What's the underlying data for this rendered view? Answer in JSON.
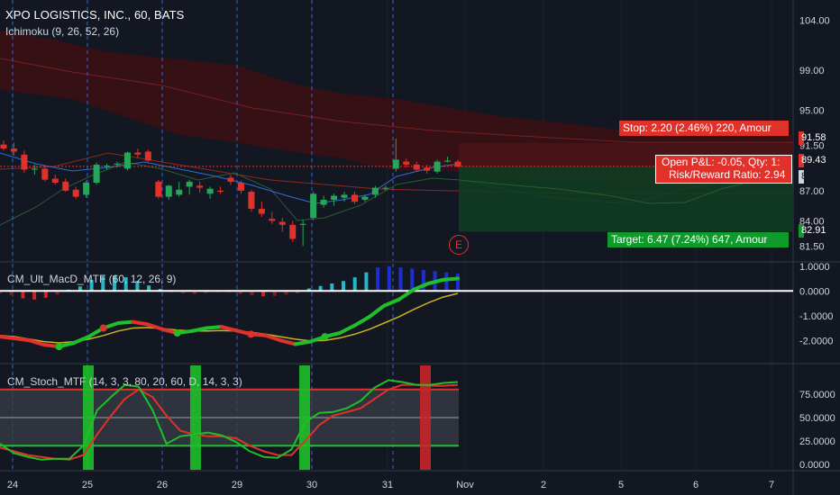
{
  "header": {
    "title": "XPO LOGISTICS, INC., 60, BATS",
    "indicator": "Ichimoku (9, 26, 52, 26)"
  },
  "panes": {
    "macd_title": "CM_Ult_MacD_MTF (60, 12, 26, 9)",
    "stoch_title": "CM_Stoch_MTF (14, 3, 3, 80, 20, 60, D, 14, 3, 3)"
  },
  "position": {
    "stop_label": "Stop: 2.20 (2.46%) 220, Amour",
    "target_label": "Target: 6.47 (7.24%) 647, Amour",
    "pnl_label": "Open P&L: -0.05, Qty: 1:",
    "rr_label": "Risk/Reward Ratio: 2.94",
    "earnings_marker": "E"
  },
  "price_tags": {
    "stop": "91.58",
    "current": "89.43",
    "entry": "89.38",
    "target": "82.91"
  },
  "colors": {
    "background": "#131722",
    "up": "#26a65b",
    "down": "#e0312b",
    "grid": "#1e2230",
    "target_zone": "#0f3d22",
    "stop_zone": "#4a1418",
    "cloud": "#3a0f14"
  },
  "chart_data": [
    {
      "type": "candlestick",
      "title": "XPO LOGISTICS, INC., 60, BATS",
      "x_ticks": [
        "24",
        "25",
        "26",
        "29",
        "30",
        "31",
        "Nov",
        "2",
        "5",
        "6",
        "7"
      ],
      "y_ticks": [
        "104.00",
        "99.00",
        "95.00",
        "91.50",
        "87.00",
        "84.00",
        "81.50"
      ],
      "ylim": [
        80.0,
        106.0
      ],
      "candles": [
        {
          "o": 91.6,
          "h": 92.0,
          "l": 91.0,
          "c": 91.2
        },
        {
          "o": 91.2,
          "h": 91.8,
          "l": 90.5,
          "c": 90.9
        },
        {
          "o": 90.6,
          "h": 91.0,
          "l": 88.8,
          "c": 89.1
        },
        {
          "o": 89.1,
          "h": 89.6,
          "l": 88.6,
          "c": 89.2
        },
        {
          "o": 89.2,
          "h": 89.5,
          "l": 87.9,
          "c": 88.1
        },
        {
          "o": 88.2,
          "h": 88.6,
          "l": 87.6,
          "c": 87.8
        },
        {
          "o": 87.9,
          "h": 88.2,
          "l": 86.9,
          "c": 87.0
        },
        {
          "o": 87.1,
          "h": 87.4,
          "l": 86.2,
          "c": 86.4
        },
        {
          "o": 86.6,
          "h": 88.0,
          "l": 86.3,
          "c": 87.8
        },
        {
          "o": 87.8,
          "h": 89.8,
          "l": 87.6,
          "c": 89.6
        },
        {
          "o": 89.4,
          "h": 89.7,
          "l": 89.1,
          "c": 89.5
        },
        {
          "o": 89.6,
          "h": 89.9,
          "l": 89.3,
          "c": 89.7
        },
        {
          "o": 89.2,
          "h": 90.9,
          "l": 89.0,
          "c": 90.8
        },
        {
          "o": 90.8,
          "h": 91.2,
          "l": 90.3,
          "c": 90.6
        },
        {
          "o": 90.9,
          "h": 91.1,
          "l": 89.9,
          "c": 90.0
        },
        {
          "o": 87.9,
          "h": 88.1,
          "l": 86.2,
          "c": 86.4
        },
        {
          "o": 86.4,
          "h": 87.6,
          "l": 86.1,
          "c": 87.5
        },
        {
          "o": 86.6,
          "h": 87.9,
          "l": 86.4,
          "c": 87.1
        },
        {
          "o": 87.4,
          "h": 88.1,
          "l": 86.6,
          "c": 87.9
        },
        {
          "o": 87.5,
          "h": 87.9,
          "l": 86.8,
          "c": 87.3
        },
        {
          "o": 86.7,
          "h": 87.4,
          "l": 86.2,
          "c": 87.2
        },
        {
          "o": 87.0,
          "h": 87.4,
          "l": 86.7,
          "c": 86.9
        },
        {
          "o": 88.3,
          "h": 88.6,
          "l": 87.6,
          "c": 87.9
        },
        {
          "o": 87.8,
          "h": 88.0,
          "l": 86.7,
          "c": 87.0
        },
        {
          "o": 86.9,
          "h": 87.1,
          "l": 84.9,
          "c": 85.2
        },
        {
          "o": 85.2,
          "h": 85.9,
          "l": 84.4,
          "c": 84.7
        },
        {
          "o": 84.2,
          "h": 84.9,
          "l": 83.7,
          "c": 84.0
        },
        {
          "o": 83.9,
          "h": 84.3,
          "l": 82.9,
          "c": 83.6
        },
        {
          "o": 83.6,
          "h": 84.0,
          "l": 81.9,
          "c": 82.2
        },
        {
          "o": 83.6,
          "h": 84.1,
          "l": 81.5,
          "c": 83.7
        },
        {
          "o": 84.3,
          "h": 86.9,
          "l": 84.1,
          "c": 86.7
        },
        {
          "o": 85.6,
          "h": 86.5,
          "l": 85.3,
          "c": 86.1
        },
        {
          "o": 86.1,
          "h": 86.7,
          "l": 85.5,
          "c": 86.5
        },
        {
          "o": 86.3,
          "h": 86.9,
          "l": 85.9,
          "c": 86.6
        },
        {
          "o": 86.6,
          "h": 86.9,
          "l": 85.7,
          "c": 85.9
        },
        {
          "o": 86.1,
          "h": 86.6,
          "l": 85.9,
          "c": 86.4
        },
        {
          "o": 86.6,
          "h": 87.5,
          "l": 86.3,
          "c": 87.3
        },
        {
          "o": 87.2,
          "h": 87.5,
          "l": 87.0,
          "c": 87.3
        },
        {
          "o": 89.2,
          "h": 92.2,
          "l": 88.9,
          "c": 90.1
        },
        {
          "o": 89.9,
          "h": 90.2,
          "l": 89.3,
          "c": 89.6
        },
        {
          "o": 89.6,
          "h": 89.9,
          "l": 88.9,
          "c": 89.1
        },
        {
          "o": 89.3,
          "h": 89.6,
          "l": 88.7,
          "c": 89.0
        },
        {
          "o": 88.9,
          "h": 90.1,
          "l": 88.7,
          "c": 89.9
        },
        {
          "o": 89.9,
          "h": 90.4,
          "l": 89.8,
          "c": 90.0
        },
        {
          "o": 89.9,
          "h": 90.1,
          "l": 89.3,
          "c": 89.4
        }
      ],
      "position": {
        "entry": 89.38,
        "stop": 91.58,
        "target": 82.91,
        "current": 89.43
      }
    },
    {
      "type": "bar+line",
      "title": "CM_Ult_MacD_MTF (60, 12, 26, 9)",
      "y_ticks": [
        "1.0000",
        "0.0000",
        "-1.0000",
        "-2.0000"
      ],
      "ylim": [
        -2.9,
        1.1
      ],
      "histogram": [
        -0.1,
        -0.18,
        -0.3,
        -0.35,
        -0.28,
        -0.15,
        0.05,
        0.18,
        0.45,
        0.6,
        0.62,
        0.55,
        0.4,
        0.22,
        0.08,
        -0.05,
        -0.1,
        -0.12,
        -0.08,
        -0.05,
        -0.05,
        -0.12,
        -0.18,
        -0.22,
        -0.2,
        -0.15,
        -0.1,
        0.1,
        0.2,
        0.3,
        0.4,
        0.55,
        0.75,
        0.95,
        1.0,
        0.95,
        0.9,
        0.85,
        0.8,
        0.75,
        0.7
      ],
      "macd_line": [
        -1.85,
        -1.92,
        -2.0,
        -2.18,
        -2.25,
        -2.1,
        -1.85,
        -1.5,
        -1.3,
        -1.25,
        -1.35,
        -1.55,
        -1.7,
        -1.62,
        -1.5,
        -1.45,
        -1.6,
        -1.75,
        -1.8,
        -2.0,
        -2.15,
        -2.05,
        -1.85,
        -1.7,
        -1.4,
        -1.05,
        -0.6,
        -0.35,
        0.05,
        0.3,
        0.45,
        0.5
      ],
      "signal_line": [
        -1.8,
        -1.85,
        -1.95,
        -2.05,
        -2.1,
        -2.05,
        -1.95,
        -1.8,
        -1.62,
        -1.5,
        -1.48,
        -1.52,
        -1.58,
        -1.62,
        -1.62,
        -1.6,
        -1.62,
        -1.68,
        -1.75,
        -1.85,
        -1.95,
        -2.02,
        -2.0,
        -1.9,
        -1.75,
        -1.55,
        -1.3,
        -1.05,
        -0.75,
        -0.48,
        -0.25,
        -0.1
      ]
    },
    {
      "type": "line",
      "title": "CM_Stoch_MTF (14, 3, 3, 80, 20, 60, D, 14, 3, 3)",
      "y_ticks": [
        "75.0000",
        "50.0000",
        "25.0000",
        "0.0000"
      ],
      "ylim": [
        0,
        100
      ],
      "upper_band": 80,
      "lower_band": 20,
      "k_line": [
        22,
        12,
        8,
        5,
        6,
        6,
        20,
        58,
        72,
        85,
        83,
        58,
        22,
        30,
        32,
        34,
        31,
        24,
        14,
        8,
        7,
        16,
        45,
        55,
        56,
        60,
        68,
        82,
        90,
        88,
        85,
        85,
        87,
        88
      ],
      "d_line": [
        18,
        14,
        10,
        8,
        6,
        5,
        10,
        32,
        52,
        70,
        80,
        72,
        52,
        36,
        32,
        30,
        30,
        28,
        20,
        14,
        10,
        10,
        25,
        42,
        52,
        56,
        60,
        70,
        80,
        85,
        85,
        84,
        84,
        85
      ]
    }
  ]
}
